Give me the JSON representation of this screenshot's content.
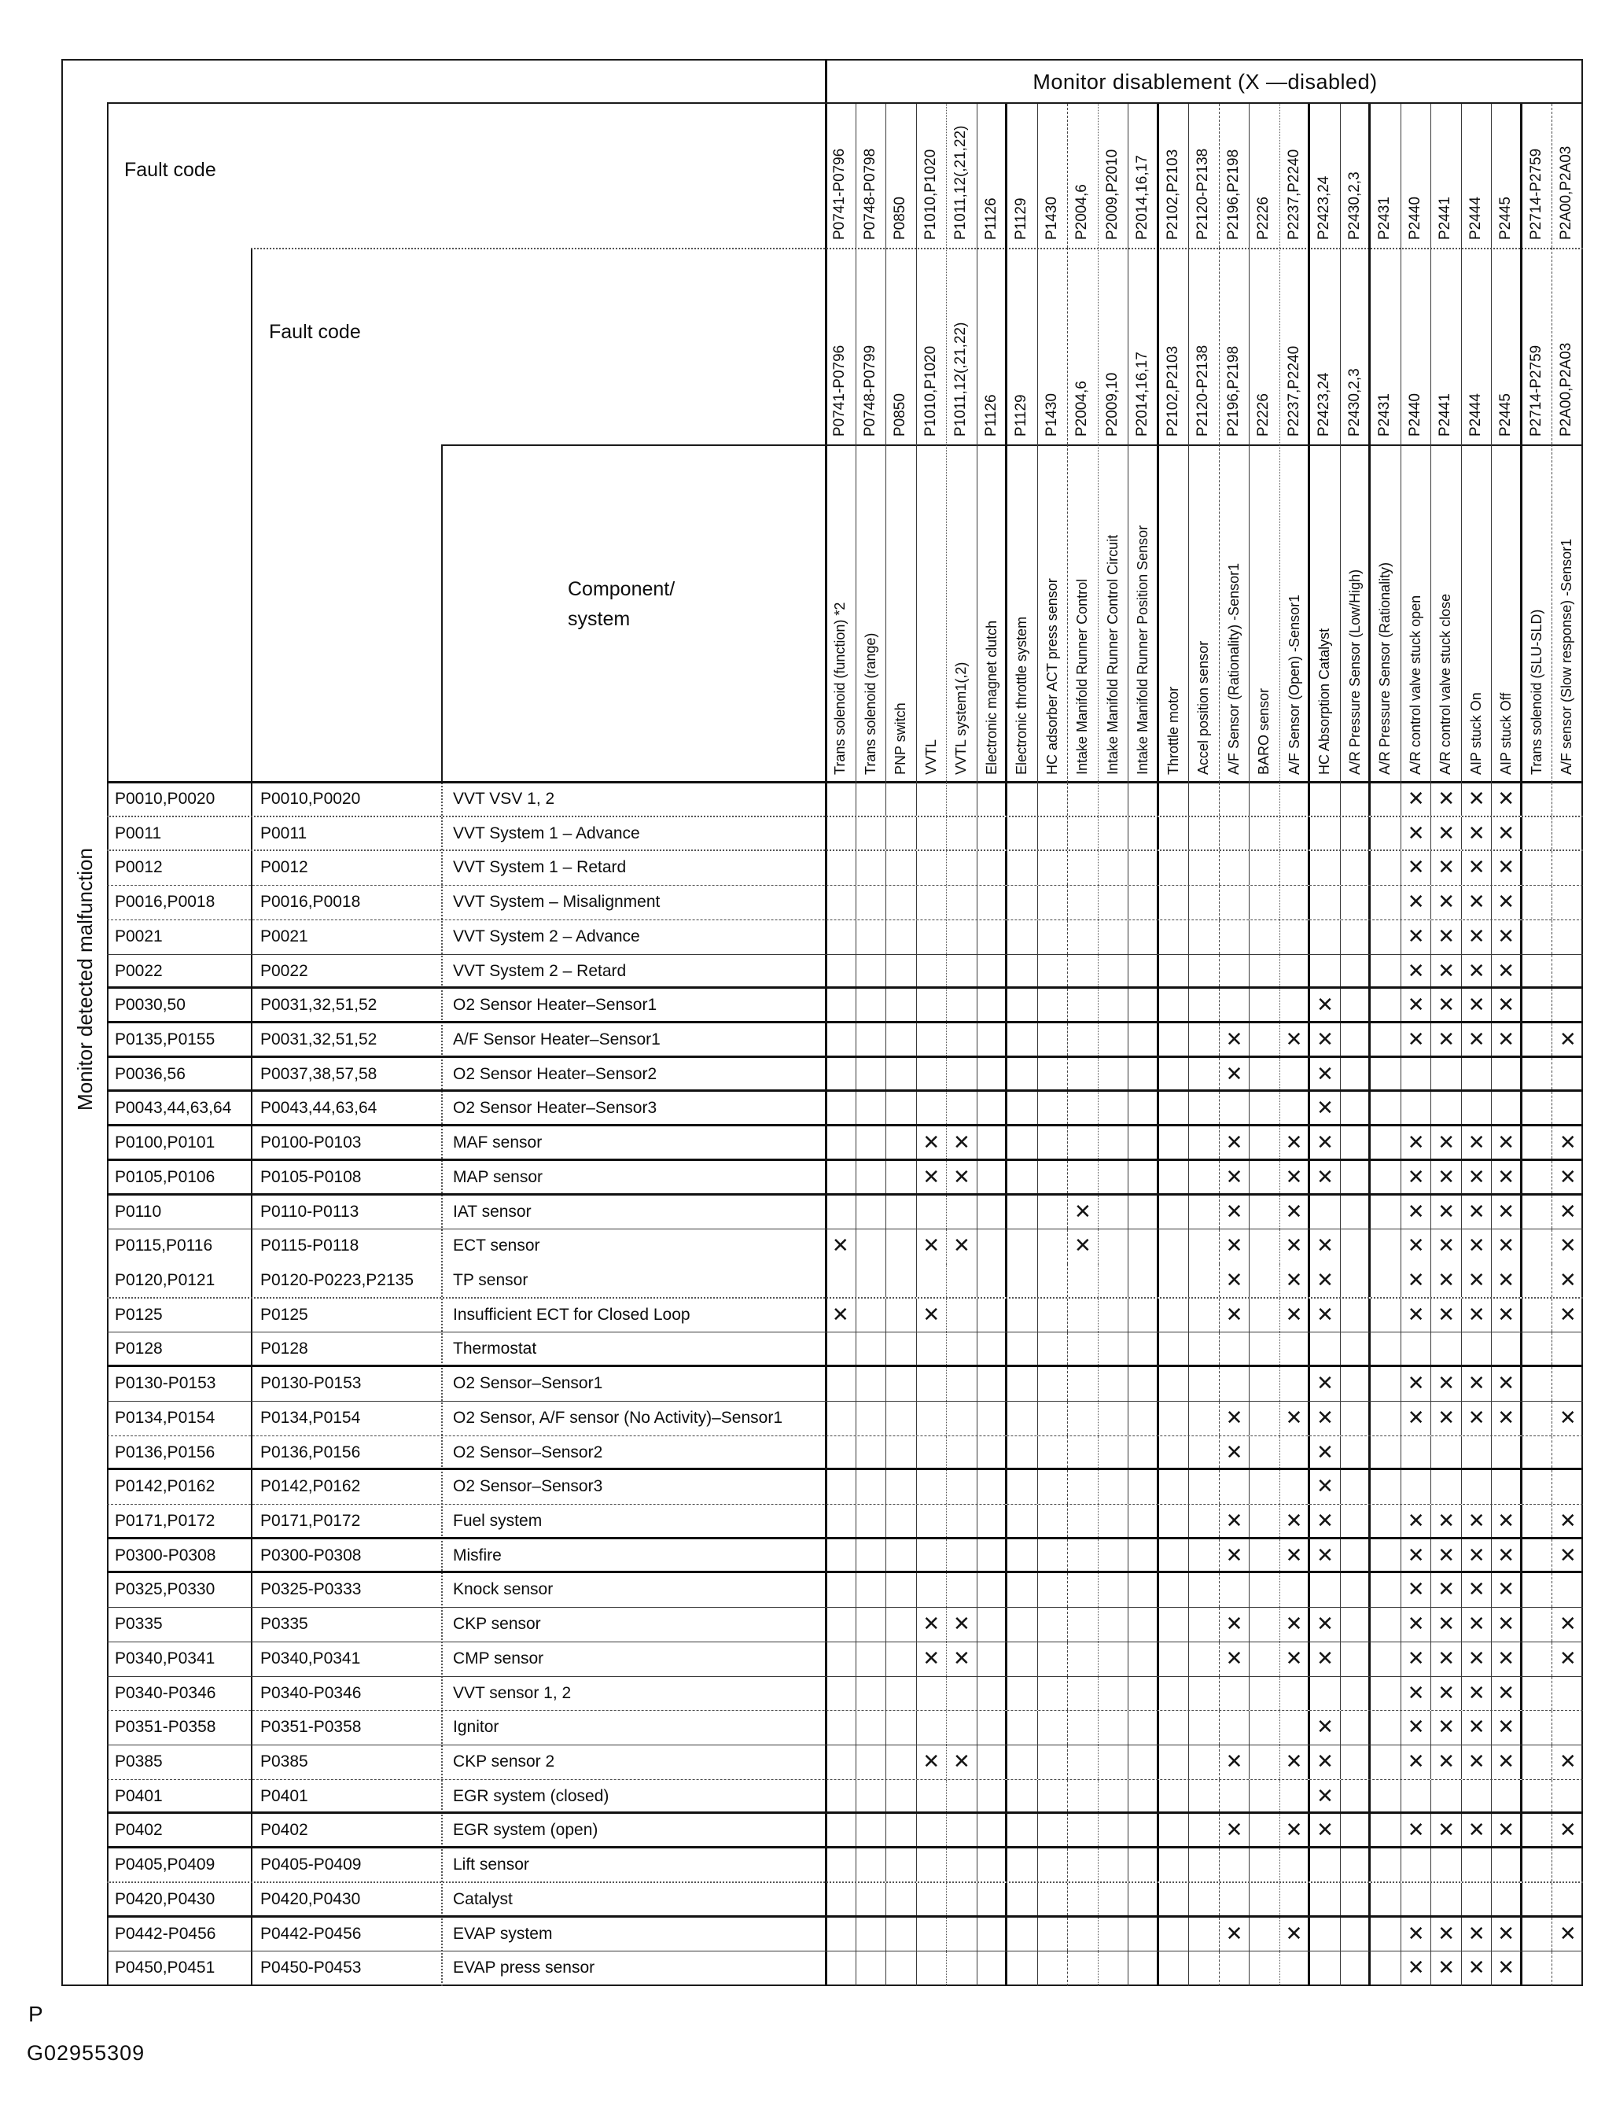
{
  "title": "Monitor disablement (X —disabled)",
  "fault_code_label_1": "Fault code",
  "fault_code_label_2": "Fault code",
  "component_label_line1": "Component/",
  "component_label_line2": "system",
  "left_axis_label": "Monitor detected malfunction",
  "mark_glyph": "✕",
  "footer": {
    "page_mark": "P",
    "figure_id": "G02955309"
  },
  "columns": [
    {
      "code_top": "P0741-P0796",
      "code_mid": "P0741-P0796",
      "component": "Trans solenoid (function) *2",
      "border_right": "thin"
    },
    {
      "code_top": "P0748-P0798",
      "code_mid": "P0748-P0799",
      "component": "Trans solenoid (range)",
      "border_right": "thin"
    },
    {
      "code_top": "P0850",
      "code_mid": "P0850",
      "component": "PNP switch",
      "border_right": "thin"
    },
    {
      "code_top": "P1010,P1020",
      "code_mid": "P1010,P1020",
      "component": "VVTL",
      "border_right": "dotted"
    },
    {
      "code_top": "P1011,12(,21,22)",
      "code_mid": "P1011,12(,21,22)",
      "component": "VVTL system1(,2)",
      "border_right": "thin"
    },
    {
      "code_top": "P1126",
      "code_mid": "P1126",
      "component": "Electronic magnet clutch",
      "border_right": "thick"
    },
    {
      "code_top": "P1129",
      "code_mid": "P1129",
      "component": "Electronic throttle system",
      "border_right": "thin"
    },
    {
      "code_top": "P1430",
      "code_mid": "P1430",
      "component": "HC adsorber ACT press sensor",
      "border_right": "dashed"
    },
    {
      "code_top": "P2004,6",
      "code_mid": "P2004,6",
      "component": "Intake Manifold Runner Control",
      "border_right": "dotted"
    },
    {
      "code_top": "P2009,P2010",
      "code_mid": "P2009,10",
      "component": "Intake Manifold Runner Control Circuit",
      "border_right": "thin"
    },
    {
      "code_top": "P2014,16,17",
      "code_mid": "P2014,16,17",
      "component": "Intake Manifold Runner Position Sensor",
      "border_right": "thick"
    },
    {
      "code_top": "P2102,P2103",
      "code_mid": "P2102,P2103",
      "component": "Throttle motor",
      "border_right": "thin"
    },
    {
      "code_top": "P2120-P2138",
      "code_mid": "P2120-P2138",
      "component": "Accel position sensor",
      "border_right": "dashed"
    },
    {
      "code_top": "P2196,P2198",
      "code_mid": "P2196,P2198",
      "component": "A/F Sensor (Rationality) -Sensor1",
      "border_right": "thin"
    },
    {
      "code_top": "P2226",
      "code_mid": "P2226",
      "component": "BARO sensor",
      "border_right": "dotted"
    },
    {
      "code_top": "P2237,P2240",
      "code_mid": "P2237,P2240",
      "component": "A/F Sensor (Open) -Sensor1",
      "border_right": "thick"
    },
    {
      "code_top": "P2423,24",
      "code_mid": "P2423,24",
      "component": "HC Absorption Catalyst",
      "border_right": "thin"
    },
    {
      "code_top": "P2430,2,3",
      "code_mid": "P2430,2,3",
      "component": "A/R Pressure Sensor (Low/High)",
      "border_right": "thick"
    },
    {
      "code_top": "P2431",
      "code_mid": "P2431",
      "component": "A/R Pressure Sensor (Rationality)",
      "border_right": "thin"
    },
    {
      "code_top": "P2440",
      "code_mid": "P2440",
      "component": "A/R control valve stuck open",
      "border_right": "thin"
    },
    {
      "code_top": "P2441",
      "code_mid": "P2441",
      "component": "A/R control valve stuck close",
      "border_right": "thin"
    },
    {
      "code_top": "P2444",
      "code_mid": "P2444",
      "component": "AIP stuck On",
      "border_right": "thin"
    },
    {
      "code_top": "P2445",
      "code_mid": "P2445",
      "component": "AIP stuck Off",
      "border_right": "thick"
    },
    {
      "code_top": "P2714-P2759",
      "code_mid": "P2714-P2759",
      "component": "Trans solenoid (SLU-SLD)",
      "border_right": "dashed"
    },
    {
      "code_top": "P2A00,P2A03",
      "code_mid": "P2A00,P2A03",
      "component": "A/F sensor (Slow response) -Sensor1",
      "border_right": "none"
    }
  ],
  "rows": [
    {
      "fault1": "P0010,P0020",
      "fault2": "P0010,P0020",
      "component": "VVT VSV 1, 2",
      "marks": [
        20,
        21,
        22,
        23
      ],
      "border_bottom": "dotted"
    },
    {
      "fault1": "P0011",
      "fault2": "P0011",
      "component": "VVT System 1 – Advance",
      "marks": [
        20,
        21,
        22,
        23
      ],
      "border_bottom": "dotted"
    },
    {
      "fault1": "P0012",
      "fault2": "P0012",
      "component": "VVT System 1 – Retard",
      "marks": [
        20,
        21,
        22,
        23
      ],
      "border_bottom": "dashed"
    },
    {
      "fault1": "P0016,P0018",
      "fault2": "P0016,P0018",
      "component": "VVT System – Misalignment",
      "marks": [
        20,
        21,
        22,
        23
      ],
      "border_bottom": "dashed"
    },
    {
      "fault1": "P0021",
      "fault2": "P0021",
      "component": "VVT System 2 – Advance",
      "marks": [
        20,
        21,
        22,
        23
      ],
      "border_bottom": "thin"
    },
    {
      "fault1": "P0022",
      "fault2": "P0022",
      "component": "VVT System 2 – Retard",
      "marks": [
        20,
        21,
        22,
        23
      ],
      "border_bottom": "thick"
    },
    {
      "fault1": "P0030,50",
      "fault2": "P0031,32,51,52",
      "component": "O2 Sensor Heater–Sensor1",
      "marks": [
        17,
        20,
        21,
        22,
        23
      ],
      "border_bottom": "thick"
    },
    {
      "fault1": "P0135,P0155",
      "fault2": "P0031,32,51,52",
      "component": "A/F Sensor Heater–Sensor1",
      "marks": [
        14,
        16,
        17,
        20,
        21,
        22,
        23,
        25
      ],
      "border_bottom": "thick"
    },
    {
      "fault1": "P0036,56",
      "fault2": "P0037,38,57,58",
      "component": "O2 Sensor Heater–Sensor2",
      "marks": [
        14,
        17
      ],
      "border_bottom": "thick"
    },
    {
      "fault1": "P0043,44,63,64",
      "fault2": "P0043,44,63,64",
      "component": "O2 Sensor Heater–Sensor3",
      "marks": [
        17
      ],
      "border_bottom": "thick"
    },
    {
      "fault1": "P0100,P0101",
      "fault2": "P0100-P0103",
      "component": "MAF sensor",
      "marks": [
        4,
        5,
        14,
        16,
        17,
        20,
        21,
        22,
        23,
        25
      ],
      "border_bottom": "thick"
    },
    {
      "fault1": "P0105,P0106",
      "fault2": "P0105-P0108",
      "component": "MAP sensor",
      "marks": [
        4,
        5,
        14,
        16,
        17,
        20,
        21,
        22,
        23,
        25
      ],
      "border_bottom": "thick"
    },
    {
      "fault1": "P0110",
      "fault2": "P0110-P0113",
      "component": "IAT sensor",
      "marks": [
        9,
        14,
        16,
        20,
        21,
        22,
        23,
        25
      ],
      "border_bottom": "thin"
    },
    {
      "fault1": "P0115,P0116",
      "fault2": "P0115-P0118",
      "component": "ECT sensor",
      "marks": [
        1,
        4,
        5,
        9,
        14,
        16,
        17,
        20,
        21,
        22,
        23,
        25
      ],
      "border_bottom": "none"
    },
    {
      "fault1": "P0120,P0121",
      "fault2": "P0120-P0223,P2135",
      "component": "TP sensor",
      "marks": [
        14,
        16,
        17,
        20,
        21,
        22,
        23,
        25
      ],
      "border_bottom": "dotted"
    },
    {
      "fault1": "P0125",
      "fault2": "P0125",
      "component": "Insufficient ECT for Closed Loop",
      "marks": [
        1,
        4,
        14,
        16,
        17,
        20,
        21,
        22,
        23,
        25
      ],
      "border_bottom": "thin"
    },
    {
      "fault1": "P0128",
      "fault2": "P0128",
      "component": "Thermostat",
      "marks": [],
      "border_bottom": "thick"
    },
    {
      "fault1": "P0130-P0153",
      "fault2": "P0130-P0153",
      "component": "O2 Sensor–Sensor1",
      "marks": [
        17,
        20,
        21,
        22,
        23
      ],
      "border_bottom": "thin"
    },
    {
      "fault1": "P0134,P0154",
      "fault2": "P0134,P0154",
      "component": "O2 Sensor, A/F sensor (No Activity)–Sensor1",
      "marks": [
        14,
        16,
        17,
        20,
        21,
        22,
        23,
        25
      ],
      "border_bottom": "dashed"
    },
    {
      "fault1": "P0136,P0156",
      "fault2": "P0136,P0156",
      "component": "O2 Sensor–Sensor2",
      "marks": [
        14,
        17
      ],
      "border_bottom": "thick"
    },
    {
      "fault1": "P0142,P0162",
      "fault2": "P0142,P0162",
      "component": "O2 Sensor–Sensor3",
      "marks": [
        17
      ],
      "border_bottom": "dashed"
    },
    {
      "fault1": "P0171,P0172",
      "fault2": "P0171,P0172",
      "component": "Fuel system",
      "marks": [
        14,
        16,
        17,
        20,
        21,
        22,
        23,
        25
      ],
      "border_bottom": "thick"
    },
    {
      "fault1": "P0300-P0308",
      "fault2": "P0300-P0308",
      "component": "Misfire",
      "marks": [
        14,
        16,
        17,
        20,
        21,
        22,
        23,
        25
      ],
      "border_bottom": "thick"
    },
    {
      "fault1": "P0325,P0330",
      "fault2": "P0325-P0333",
      "component": "Knock sensor",
      "marks": [
        20,
        21,
        22,
        23
      ],
      "border_bottom": "thin"
    },
    {
      "fault1": "P0335",
      "fault2": "P0335",
      "component": "CKP sensor",
      "marks": [
        4,
        5,
        14,
        16,
        17,
        20,
        21,
        22,
        23,
        25
      ],
      "border_bottom": "thin"
    },
    {
      "fault1": "P0340,P0341",
      "fault2": "P0340,P0341",
      "component": "CMP sensor",
      "marks": [
        4,
        5,
        14,
        16,
        17,
        20,
        21,
        22,
        23,
        25
      ],
      "border_bottom": "thin"
    },
    {
      "fault1": "P0340-P0346",
      "fault2": "P0340-P0346",
      "component": "VVT sensor 1, 2",
      "marks": [
        20,
        21,
        22,
        23
      ],
      "border_bottom": "dashed"
    },
    {
      "fault1": "P0351-P0358",
      "fault2": "P0351-P0358",
      "component": "Ignitor",
      "marks": [
        17,
        20,
        21,
        22,
        23
      ],
      "border_bottom": "thin"
    },
    {
      "fault1": "P0385",
      "fault2": "P0385",
      "component": "CKP sensor 2",
      "marks": [
        4,
        5,
        14,
        16,
        17,
        20,
        21,
        22,
        23,
        25
      ],
      "border_bottom": "dashed"
    },
    {
      "fault1": "P0401",
      "fault2": "P0401",
      "component": "EGR system (closed)",
      "marks": [
        17
      ],
      "border_bottom": "thick"
    },
    {
      "fault1": "P0402",
      "fault2": "P0402",
      "component": "EGR system (open)",
      "marks": [
        14,
        16,
        17,
        20,
        21,
        22,
        23,
        25
      ],
      "border_bottom": "thick"
    },
    {
      "fault1": "P0405,P0409",
      "fault2": "P0405-P0409",
      "component": "Lift sensor",
      "marks": [],
      "border_bottom": "dotted"
    },
    {
      "fault1": "P0420,P0430",
      "fault2": "P0420,P0430",
      "component": "Catalyst",
      "marks": [],
      "border_bottom": "thick"
    },
    {
      "fault1": "P0442-P0456",
      "fault2": "P0442-P0456",
      "component": "EVAP system",
      "marks": [
        14,
        16,
        20,
        21,
        22,
        23,
        25
      ],
      "border_bottom": "thin"
    },
    {
      "fault1": "P0450,P0451",
      "fault2": "P0450-P0453",
      "component": "EVAP press sensor",
      "marks": [
        20,
        21,
        22,
        23
      ],
      "border_bottom": "none"
    }
  ]
}
